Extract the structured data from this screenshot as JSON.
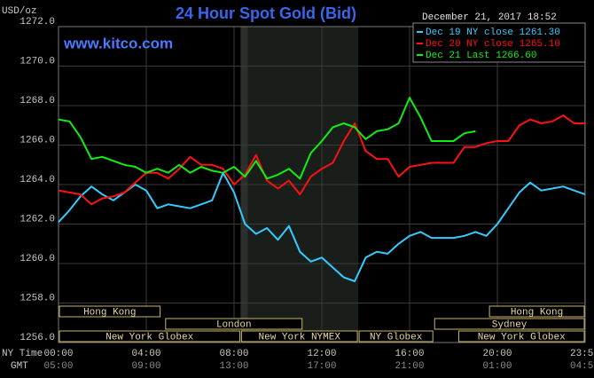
{
  "chart_data": {
    "type": "line",
    "title": "24 Hour Spot Gold (Bid)",
    "unit_label": "USD/oz",
    "website": "www.kitco.com",
    "timestamp": "December 21, 2017 18:52",
    "ny_time_label": "NY Time",
    "gmt_label": "GMT",
    "x": [
      0,
      0.5,
      1,
      1.5,
      2,
      2.5,
      3,
      3.5,
      4,
      4.5,
      5,
      5.5,
      6,
      6.5,
      7,
      7.5,
      8,
      8.5,
      9,
      9.5,
      10,
      10.5,
      11,
      11.5,
      12,
      12.5,
      13,
      13.5,
      14,
      14.5,
      15,
      15.5,
      16,
      16.5,
      17,
      17.5,
      18,
      18.5,
      19,
      19.5,
      20,
      20.5,
      21,
      21.5,
      22,
      22.5,
      23,
      23.5,
      24
    ],
    "series": [
      {
        "name": "Dec 19 NY close 1261.30",
        "color": "#33ccff",
        "values": [
          1262.1,
          1262.7,
          1263.4,
          1263.9,
          1263.5,
          1263.2,
          1263.6,
          1264.0,
          1263.7,
          1262.8,
          1263.0,
          1262.9,
          1262.8,
          1263.0,
          1263.2,
          1264.6,
          1263.6,
          1262.0,
          1261.5,
          1261.8,
          1261.2,
          1261.9,
          1260.6,
          1260.1,
          1260.3,
          1259.8,
          1259.3,
          1259.1,
          1260.3,
          1260.6,
          1260.5,
          1261.0,
          1261.4,
          1261.6,
          1261.3,
          1261.3,
          1261.3,
          1261.4,
          1261.6,
          1261.4,
          1262.0,
          1262.8,
          1263.6,
          1264.1,
          1263.7,
          1263.8,
          1263.9,
          1263.7,
          1263.5
        ]
      },
      {
        "name": "Dec 20 NY close 1265.10",
        "color": "#ff1111",
        "values": [
          1263.7,
          1263.6,
          1263.5,
          1263.0,
          1263.3,
          1263.4,
          1263.6,
          1264.1,
          1264.6,
          1264.6,
          1264.3,
          1264.8,
          1265.4,
          1265.0,
          1265.0,
          1264.8,
          1264.0,
          1264.5,
          1265.5,
          1264.2,
          1263.8,
          1264.2,
          1263.5,
          1264.4,
          1264.8,
          1265.1,
          1266.2,
          1267.1,
          1265.7,
          1265.3,
          1265.3,
          1264.4,
          1264.9,
          1265.0,
          1265.1,
          1265.1,
          1265.1,
          1265.9,
          1265.9,
          1266.1,
          1266.2,
          1266.2,
          1267.0,
          1267.3,
          1267.1,
          1267.2,
          1267.5,
          1267.1,
          1267.1
        ]
      },
      {
        "name": "Dec 21 Last 1266.60",
        "color": "#11ee11",
        "values": [
          1267.3,
          1267.2,
          1266.4,
          1265.3,
          1265.4,
          1265.2,
          1265.0,
          1264.9,
          1264.6,
          1264.8,
          1264.6,
          1265.0,
          1264.6,
          1264.9,
          1264.7,
          1264.6,
          1264.9,
          1264.4,
          1265.2,
          1264.3,
          1264.5,
          1264.8,
          1264.3,
          1265.6,
          1266.2,
          1266.9,
          1267.1,
          1266.9,
          1266.3,
          1266.7,
          1266.8,
          1267.1,
          1268.4,
          1267.4,
          1266.2,
          1266.2,
          1266.2,
          1266.6,
          1266.7,
          null,
          null,
          null,
          null,
          null,
          null,
          null,
          null,
          null,
          null
        ]
      }
    ],
    "xlim": [
      0,
      24
    ],
    "xticks": [
      {
        "value": 0,
        "label": "00:00"
      },
      {
        "value": 4,
        "label": "04:00"
      },
      {
        "value": 8,
        "label": "08:00"
      },
      {
        "value": 12,
        "label": "12:00"
      },
      {
        "value": 16,
        "label": "16:00"
      },
      {
        "value": 20,
        "label": "20:00"
      },
      {
        "value": 23.98,
        "label": "23:59"
      }
    ],
    "gmt_tick_labels": [
      "05:00",
      "09:00",
      "13:00",
      "17:00",
      "21:00",
      "01:00",
      "04:59"
    ],
    "ylim": [
      1256,
      1272
    ],
    "yticks": [
      {
        "value": 1256,
        "label": "1256.0"
      },
      {
        "value": 1258,
        "label": "1258.0"
      },
      {
        "value": 1260,
        "label": "1260.0"
      },
      {
        "value": 1262,
        "label": "1262.0"
      },
      {
        "value": 1264,
        "label": "1264.0"
      },
      {
        "value": 1266,
        "label": "1266.0"
      },
      {
        "value": 1268,
        "label": "1268.0"
      },
      {
        "value": 1270,
        "label": "1270.0"
      },
      {
        "value": 1272,
        "label": "1272.0"
      }
    ],
    "grid": true,
    "sessions": [
      {
        "label": "Hong Kong",
        "start": 0,
        "end": 4.67
      },
      {
        "label": "London",
        "start": 4.84,
        "end": 11.14
      },
      {
        "label": "New York Globex",
        "start": 0,
        "end": 8.3
      },
      {
        "label": "New York NYMEX",
        "start": 8.3,
        "end": 13.66
      },
      {
        "label": "NY Globex",
        "start": 13.66,
        "end": 17.1
      },
      {
        "label": "Sydney",
        "start": 17.1,
        "end": 24
      },
      {
        "label": "Hong Kong",
        "start": 19.6,
        "end": 24
      },
      {
        "label": "New York Globex",
        "start": 18.2,
        "end": 24
      }
    ]
  }
}
